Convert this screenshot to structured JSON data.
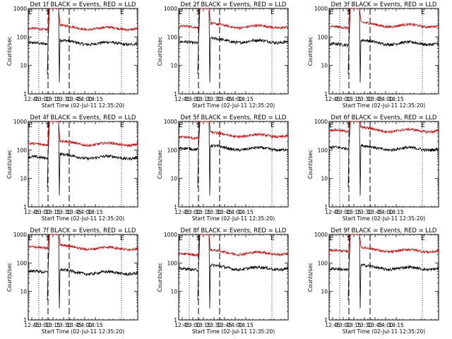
{
  "figure": {
    "start_time_label": "Start Time (02-Jul-11 12:35:20)",
    "ylabel": "Counts/sec",
    "legend_text": "BLACK = Events, RED = LLD"
  },
  "chart_data": [
    {
      "type": "line",
      "title": "Det 1f BLACK = Events, RED = LLD",
      "xlabel": "Start Time (02-Jul-11 12:35:20)",
      "ylabel": "Counts/sec",
      "x_range_min": [
        40,
        195
      ],
      "x_ticks": [
        "12:45",
        "13:00",
        "13:15",
        "13:30",
        "13:45",
        "14:00",
        "14:15"
      ],
      "ylim": [
        1,
        1000
      ],
      "y_scale": "log",
      "y_ticks": [
        "1",
        "10",
        "100",
        "1000"
      ],
      "markers": [
        {
          "label": "E",
          "x_min": 40
        },
        {
          "label": "S",
          "x_min": 67
        },
        {
          "label": "E",
          "x_min": 172
        }
      ],
      "dotted_lines_min": [
        55,
        172
      ],
      "dashed_lines_min": [
        68,
        98
      ],
      "series": [
        {
          "name": "Events",
          "color": "#000000",
          "before": 60,
          "after": 60
        },
        {
          "name": "LLD",
          "color": "#dd0000",
          "before": 190,
          "after": 200
        }
      ]
    },
    {
      "type": "line",
      "title": "Det 2f BLACK = Events, RED = LLD",
      "xlabel": "Start Time (02-Jul-11 12:35:20)",
      "ylabel": "Counts/sec",
      "x_range_min": [
        40,
        195
      ],
      "x_ticks": [
        "12:45",
        "13:00",
        "13:15",
        "13:30",
        "13:45",
        "14:00",
        "14:15"
      ],
      "ylim": [
        1,
        1000
      ],
      "y_scale": "log",
      "y_ticks": [
        "1",
        "10",
        "100",
        "1000"
      ],
      "markers": [
        {
          "label": "E",
          "x_min": 40
        },
        {
          "label": "S",
          "x_min": 67
        },
        {
          "label": "E",
          "x_min": 172
        }
      ],
      "dotted_lines_min": [
        55,
        172
      ],
      "dashed_lines_min": [
        68,
        98
      ],
      "series": [
        {
          "name": "Events",
          "color": "#000000",
          "before": 65,
          "after": 70
        },
        {
          "name": "LLD",
          "color": "#dd0000",
          "before": 230,
          "after": 230
        }
      ]
    },
    {
      "type": "line",
      "title": "Det 3f BLACK = Events, RED = LLD",
      "xlabel": "Start Time (02-Jul-11 12:35:20)",
      "ylabel": "Counts/sec",
      "x_range_min": [
        40,
        195
      ],
      "x_ticks": [
        "12:45",
        "13:00",
        "13:15",
        "13:30",
        "13:45",
        "14:00",
        "14:15"
      ],
      "ylim": [
        1,
        1000
      ],
      "y_scale": "log",
      "y_ticks": [
        "1",
        "10",
        "100",
        "1000"
      ],
      "markers": [
        {
          "label": "E",
          "x_min": 40
        },
        {
          "label": "S",
          "x_min": 67
        },
        {
          "label": "E",
          "x_min": 172
        }
      ],
      "dotted_lines_min": [
        55,
        172
      ],
      "dashed_lines_min": [
        68,
        98
      ],
      "series": [
        {
          "name": "Events",
          "color": "#000000",
          "before": 55,
          "after": 60
        },
        {
          "name": "LLD",
          "color": "#dd0000",
          "before": 220,
          "after": 250
        }
      ]
    },
    {
      "type": "line",
      "title": "Det 4f BLACK = Events, RED = LLD",
      "xlabel": "Start Time (02-Jul-11 12:35:20)",
      "ylabel": "Counts/sec",
      "x_range_min": [
        40,
        195
      ],
      "x_ticks": [
        "12:45",
        "13:00",
        "13:15",
        "13:30",
        "13:45",
        "14:00",
        "14:15"
      ],
      "ylim": [
        1,
        1000
      ],
      "y_scale": "log",
      "y_ticks": [
        "1",
        "10",
        "100",
        "1000"
      ],
      "markers": [
        {
          "label": "E",
          "x_min": 40
        },
        {
          "label": "S",
          "x_min": 67
        },
        {
          "label": "E",
          "x_min": 172
        }
      ],
      "dotted_lines_min": [
        55,
        172
      ],
      "dashed_lines_min": [
        68,
        98
      ],
      "series": [
        {
          "name": "Events",
          "color": "#000000",
          "before": 55,
          "after": 55
        },
        {
          "name": "LLD",
          "color": "#dd0000",
          "before": 160,
          "after": 160
        }
      ]
    },
    {
      "type": "line",
      "title": "Det 5f BLACK = Events, RED = LLD",
      "xlabel": "Start Time (02-Jul-11 12:35:20)",
      "ylabel": "Counts/sec",
      "x_range_min": [
        40,
        195
      ],
      "x_ticks": [
        "12:45",
        "13:00",
        "13:15",
        "13:30",
        "13:45",
        "14:00",
        "14:15"
      ],
      "ylim": [
        1,
        1000
      ],
      "y_scale": "log",
      "y_ticks": [
        "1",
        "10",
        "100",
        "1000"
      ],
      "markers": [
        {
          "label": "E",
          "x_min": 40
        },
        {
          "label": "S",
          "x_min": 67
        },
        {
          "label": "E",
          "x_min": 172
        }
      ],
      "dotted_lines_min": [
        55,
        172
      ],
      "dashed_lines_min": [
        68,
        98
      ],
      "series": [
        {
          "name": "Events",
          "color": "#000000",
          "before": 110,
          "after": 110
        },
        {
          "name": "LLD",
          "color": "#dd0000",
          "before": 270,
          "after": 320
        }
      ]
    },
    {
      "type": "line",
      "title": "Det 6f BLACK = Events, RED = LLD",
      "xlabel": "Start Time (02-Jul-11 12:35:20)",
      "ylabel": "Counts/sec",
      "x_range_min": [
        40,
        195
      ],
      "x_ticks": [
        "12:45",
        "13:00",
        "13:15",
        "13:30",
        "13:45",
        "14:00",
        "14:15"
      ],
      "ylim": [
        1,
        1000
      ],
      "y_scale": "log",
      "y_ticks": [
        "1",
        "10",
        "100",
        "1000"
      ],
      "markers": [
        {
          "label": "E",
          "x_min": 40
        },
        {
          "label": "S",
          "x_min": 67
        },
        {
          "label": "E",
          "x_min": 172
        }
      ],
      "dotted_lines_min": [
        55,
        172
      ],
      "dashed_lines_min": [
        68,
        98
      ],
      "series": [
        {
          "name": "Events",
          "color": "#000000",
          "before": 120,
          "after": 110
        },
        {
          "name": "LLD",
          "color": "#dd0000",
          "before": 480,
          "after": 480
        }
      ]
    },
    {
      "type": "line",
      "title": "Det 7f BLACK = Events, RED = LLD",
      "xlabel": "Start Time (02-Jul-11 12:35:20)",
      "ylabel": "Counts/sec",
      "x_range_min": [
        40,
        195
      ],
      "x_ticks": [
        "12:45",
        "13:00",
        "13:15",
        "13:30",
        "13:45",
        "14:00",
        "14:15"
      ],
      "ylim": [
        1,
        1000
      ],
      "y_scale": "log",
      "y_ticks": [
        "1",
        "10",
        "100",
        "1000"
      ],
      "markers": [
        {
          "label": "E",
          "x_min": 40
        },
        {
          "label": "S",
          "x_min": 67
        },
        {
          "label": "E",
          "x_min": 172
        }
      ],
      "dotted_lines_min": [
        55,
        172
      ],
      "dashed_lines_min": [
        68,
        98
      ],
      "series": [
        {
          "name": "Events",
          "color": "#000000",
          "before": 50,
          "after": 45
        },
        {
          "name": "LLD",
          "color": "#dd0000",
          "before": 350,
          "after": 330
        }
      ]
    },
    {
      "type": "line",
      "title": "Det 8f BLACK = Events, RED = LLD",
      "xlabel": "Start Time (02-Jul-11 12:35:20)",
      "ylabel": "Counts/sec",
      "x_range_min": [
        40,
        195
      ],
      "x_ticks": [
        "12:45",
        "13:00",
        "13:15",
        "13:30",
        "13:45",
        "14:00",
        "14:15"
      ],
      "ylim": [
        1,
        1000
      ],
      "y_scale": "log",
      "y_ticks": [
        "1",
        "10",
        "100",
        "1000"
      ],
      "markers": [
        {
          "label": "E",
          "x_min": 40
        },
        {
          "label": "S",
          "x_min": 67
        },
        {
          "label": "E",
          "x_min": 172
        }
      ],
      "dotted_lines_min": [
        55,
        172
      ],
      "dashed_lines_min": [
        68,
        98
      ],
      "series": [
        {
          "name": "Events",
          "color": "#000000",
          "before": 60,
          "after": 65
        },
        {
          "name": "LLD",
          "color": "#dd0000",
          "before": 200,
          "after": 220
        }
      ]
    },
    {
      "type": "line",
      "title": "Det 9f BLACK = Events, RED = LLD",
      "xlabel": "Start Time (02-Jul-11 12:35:20)",
      "ylabel": "Counts/sec",
      "x_range_min": [
        40,
        195
      ],
      "x_ticks": [
        "12:45",
        "13:00",
        "13:15",
        "13:30",
        "13:45",
        "14:00",
        "14:15"
      ],
      "ylim": [
        1,
        1000
      ],
      "y_scale": "log",
      "y_ticks": [
        "1",
        "10",
        "100",
        "1000"
      ],
      "markers": [
        {
          "label": "E",
          "x_min": 40
        },
        {
          "label": "S",
          "x_min": 67
        },
        {
          "label": "E",
          "x_min": 172
        }
      ],
      "dotted_lines_min": [
        55,
        172
      ],
      "dashed_lines_min": [
        68,
        98
      ],
      "series": [
        {
          "name": "Events",
          "color": "#000000",
          "before": 60,
          "after": 65
        },
        {
          "name": "LLD",
          "color": "#dd0000",
          "before": 270,
          "after": 270
        }
      ]
    }
  ]
}
